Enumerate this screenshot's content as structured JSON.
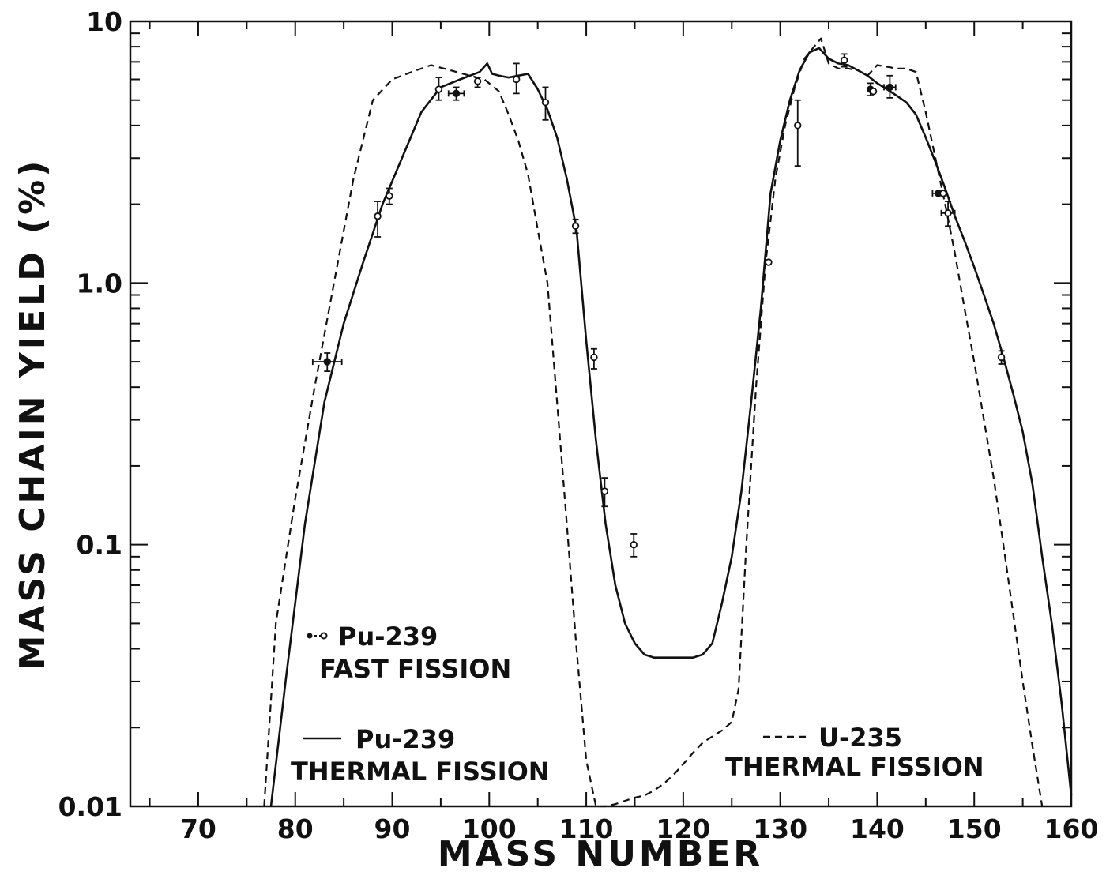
{
  "chart_data": {
    "type": "line",
    "xlabel": "MASS NUMBER",
    "ylabel": "MASS CHAIN YIELD (%)",
    "xlim": [
      63,
      160
    ],
    "ylim": [
      0.01,
      10
    ],
    "yscale": "log",
    "grid": false,
    "x_ticks": [
      70,
      80,
      90,
      100,
      110,
      120,
      130,
      140,
      150,
      160
    ],
    "x_tick_labels": [
      "70",
      "80",
      "90",
      "100",
      "110",
      "120",
      "130",
      "140",
      "150",
      "160"
    ],
    "y_ticks": [
      0.01,
      0.1,
      1.0,
      10
    ],
    "y_tick_labels": [
      "0.01",
      "0.1",
      "1.0",
      "10"
    ],
    "series": [
      {
        "name": "Pu-239 THERMAL FISSION",
        "style": "solid",
        "x": [
          77.5,
          79,
          81,
          83,
          85,
          87,
          89,
          91,
          93,
          95,
          97,
          99,
          99.8,
          100.3,
          101,
          102,
          103,
          104,
          105,
          106,
          107,
          108,
          109,
          110,
          111,
          112,
          113,
          114,
          115,
          116,
          117,
          118,
          119,
          120,
          121,
          122,
          123,
          124,
          125,
          126,
          127,
          128,
          129,
          130,
          131,
          132,
          133,
          134,
          135,
          136,
          137,
          138,
          139,
          140,
          141,
          142,
          143,
          144,
          145,
          146,
          147,
          148,
          149,
          150,
          151,
          152,
          153,
          154,
          155,
          156,
          157,
          158,
          159,
          160
        ],
        "y": [
          0.01,
          0.03,
          0.12,
          0.35,
          0.7,
          1.2,
          2.0,
          3.0,
          4.5,
          5.6,
          6.0,
          6.4,
          6.9,
          6.3,
          6.2,
          6.1,
          6.2,
          6.3,
          5.5,
          4.6,
          3.6,
          2.5,
          1.6,
          0.6,
          0.25,
          0.12,
          0.07,
          0.05,
          0.042,
          0.038,
          0.037,
          0.037,
          0.037,
          0.037,
          0.037,
          0.038,
          0.042,
          0.06,
          0.09,
          0.16,
          0.35,
          0.8,
          2.2,
          3.5,
          5.0,
          6.5,
          7.6,
          7.9,
          7.2,
          6.9,
          6.8,
          6.5,
          6.2,
          5.8,
          5.5,
          5.2,
          4.9,
          4.4,
          3.6,
          2.9,
          2.3,
          1.8,
          1.45,
          1.15,
          0.9,
          0.7,
          0.52,
          0.38,
          0.27,
          0.17,
          0.09,
          0.05,
          0.025,
          0.011
        ]
      },
      {
        "name": "U-235 THERMAL FISSION",
        "style": "dashed",
        "x": [
          76.8,
          78,
          80,
          82,
          84,
          86,
          88,
          90,
          92,
          94,
          96,
          98,
          99.5,
          101,
          102,
          103,
          104,
          105,
          106,
          107,
          108,
          109,
          110,
          111,
          112,
          113,
          114,
          115,
          116,
          117,
          118,
          119,
          120,
          121,
          122,
          123,
          124,
          125,
          125.7,
          126.5,
          127.5,
          128.5,
          129.5,
          130.5,
          131.5,
          132.5,
          133.5,
          134.2,
          135,
          136,
          137,
          138,
          139,
          140,
          141,
          142,
          143,
          144,
          145,
          146,
          147,
          148,
          149,
          150,
          151,
          152,
          153,
          154,
          155,
          156,
          157
        ],
        "y": [
          0.01,
          0.05,
          0.15,
          0.4,
          1.0,
          2.5,
          5.0,
          6.0,
          6.4,
          6.8,
          6.5,
          6.2,
          6.0,
          5.4,
          4.4,
          3.5,
          2.6,
          1.6,
          1.0,
          0.35,
          0.12,
          0.04,
          0.015,
          0.01,
          0.01,
          0.0102,
          0.0105,
          0.0108,
          0.011,
          0.0115,
          0.0122,
          0.0132,
          0.0145,
          0.016,
          0.0175,
          0.0185,
          0.0195,
          0.021,
          0.028,
          0.1,
          0.4,
          1.2,
          2.5,
          4.0,
          5.6,
          7.2,
          8.0,
          8.6,
          6.9,
          6.6,
          6.6,
          6.5,
          6.2,
          6.8,
          6.7,
          6.6,
          6.6,
          6.4,
          4.5,
          3.0,
          2.0,
          1.3,
          0.8,
          0.5,
          0.3,
          0.18,
          0.1,
          0.055,
          0.03,
          0.017,
          0.01
        ]
      },
      {
        "name": "Pu-239 FAST FISSION",
        "style": "points",
        "points": [
          {
            "x": 83.3,
            "y": 0.5,
            "ylo": 0.46,
            "yhi": 0.54,
            "xerr": 1.5,
            "filled": true
          },
          {
            "x": 88.5,
            "y": 1.8,
            "ylo": 1.5,
            "yhi": 2.05,
            "filled": false
          },
          {
            "x": 89.7,
            "y": 2.15,
            "ylo": 2.0,
            "yhi": 2.3,
            "filled": false
          },
          {
            "x": 94.8,
            "y": 5.5,
            "ylo": 5.0,
            "yhi": 6.1,
            "filled": false
          },
          {
            "x": 96.6,
            "y": 5.3,
            "ylo": 5.0,
            "yhi": 5.6,
            "xerr": 0.8,
            "filled": true
          },
          {
            "x": 98.8,
            "y": 5.9,
            "ylo": 5.6,
            "yhi": 6.1,
            "filled": false
          },
          {
            "x": 102.8,
            "y": 6.0,
            "ylo": 5.3,
            "yhi": 6.9,
            "filled": false
          },
          {
            "x": 105.8,
            "y": 4.9,
            "ylo": 4.2,
            "yhi": 5.6,
            "filled": false
          },
          {
            "x": 108.9,
            "y": 1.65,
            "ylo": 1.55,
            "yhi": 1.75,
            "filled": false
          },
          {
            "x": 110.8,
            "y": 0.52,
            "ylo": 0.47,
            "yhi": 0.56,
            "filled": false
          },
          {
            "x": 111.9,
            "y": 0.16,
            "ylo": 0.14,
            "yhi": 0.18,
            "filled": false
          },
          {
            "x": 114.9,
            "y": 0.1,
            "ylo": 0.09,
            "yhi": 0.11,
            "filled": false
          },
          {
            "x": 128.8,
            "y": 1.2,
            "filled": false
          },
          {
            "x": 131.8,
            "y": 4.0,
            "ylo": 2.8,
            "yhi": 5.0,
            "filled": false
          },
          {
            "x": 136.6,
            "y": 7.1,
            "ylo": 6.7,
            "yhi": 7.5,
            "filled": false
          },
          {
            "x": 139.3,
            "y": 5.5,
            "ylo": 5.2,
            "yhi": 5.8,
            "filled": true
          },
          {
            "x": 139.6,
            "y": 5.4,
            "filled": false
          },
          {
            "x": 141.3,
            "y": 5.6,
            "ylo": 5.1,
            "yhi": 6.2,
            "xerr": 0.6,
            "filled": true
          },
          {
            "x": 146.3,
            "y": 2.2,
            "xerr": 0.6,
            "filled": true
          },
          {
            "x": 146.8,
            "y": 2.2,
            "filled": false
          },
          {
            "x": 147.3,
            "y": 1.85,
            "ylo": 1.65,
            "yhi": 2.05,
            "xerr": 0.7,
            "filled": false
          },
          {
            "x": 152.8,
            "y": 0.52,
            "ylo": 0.49,
            "yhi": 0.55,
            "filled": false
          }
        ]
      }
    ],
    "legend": [
      {
        "symbol": "•-∘",
        "lines": [
          "Pu-239",
          "FAST FISSION"
        ]
      },
      {
        "symbol": "——",
        "lines": [
          "Pu-239",
          "THERMAL FISSION"
        ]
      },
      {
        "symbol": "---",
        "lines": [
          "U-235",
          "THERMAL FISSION"
        ]
      }
    ]
  }
}
